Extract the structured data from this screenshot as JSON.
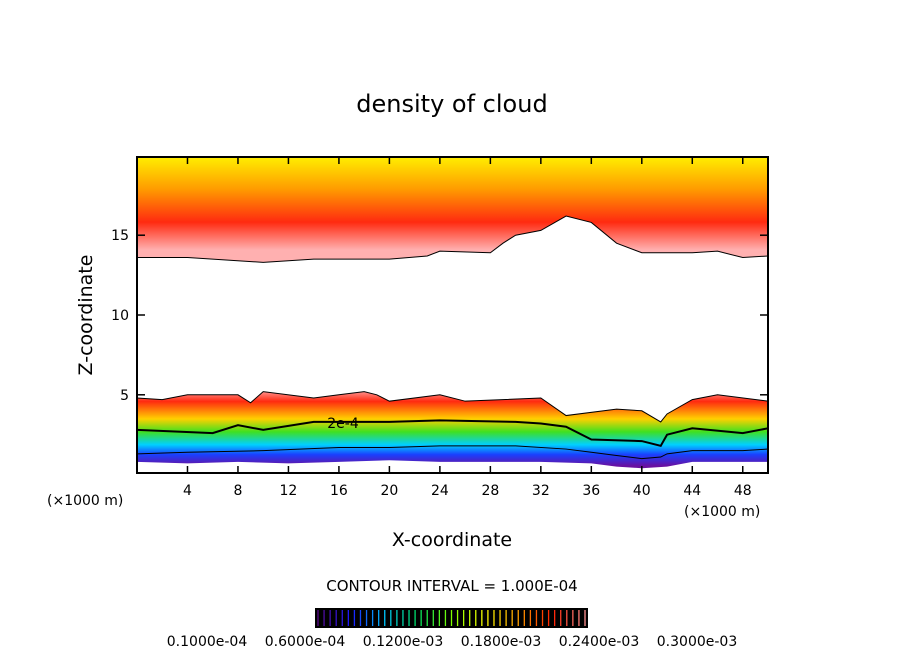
{
  "chart_data": {
    "type": "contour",
    "title": "density of cloud",
    "xlabel": "X-coordinate",
    "ylabel": "Z-coordinate",
    "x_unit_left": "(×1000 m)",
    "x_unit_right": "(×1000 m)",
    "xlim": [
      0,
      50
    ],
    "ylim": [
      0.1,
      19.9
    ],
    "xticks": [
      4,
      8,
      12,
      16,
      20,
      24,
      28,
      32,
      36,
      40,
      44,
      48
    ],
    "yticks": [
      5,
      10,
      15
    ],
    "contour_interval_label": "CONTOUR INTERVAL = 1.000E-04",
    "contour_label": "2e-4",
    "colorbar_labels": [
      "0.1000e-04",
      "0.6000e-04",
      "0.1200e-03",
      "0.1800e-03",
      "0.2400e-03",
      "0.3000e-03"
    ],
    "colorbar_colors": [
      "#5a0a8c",
      "#1a1aff",
      "#00c8ff",
      "#00e060",
      "#80ff00",
      "#ffff00",
      "#ffa000",
      "#ff2000",
      "#ff9090"
    ],
    "upper_cloud_base": {
      "x": [
        0,
        4,
        10,
        14,
        20,
        23,
        24,
        28,
        29,
        30,
        32,
        34,
        36,
        38,
        40,
        44,
        46,
        48,
        50
      ],
      "z": [
        13.6,
        13.6,
        13.3,
        13.5,
        13.5,
        13.7,
        14.0,
        13.9,
        14.5,
        15.0,
        15.3,
        16.2,
        15.8,
        14.5,
        13.9,
        13.9,
        14.0,
        13.6,
        13.7
      ]
    },
    "lower_cloud_top": {
      "x": [
        0,
        2,
        4,
        8,
        9,
        10,
        14,
        16,
        18,
        19,
        20,
        24,
        26,
        32,
        34,
        38,
        40,
        41.5,
        42,
        44,
        46,
        50
      ],
      "z": [
        4.8,
        4.7,
        5.0,
        5.0,
        4.5,
        5.2,
        4.8,
        5.0,
        5.2,
        5.0,
        4.6,
        5.0,
        4.6,
        4.8,
        3.7,
        4.1,
        4.0,
        3.3,
        3.8,
        4.7,
        5.0,
        4.6
      ]
    },
    "contour_2e-4": {
      "x": [
        0,
        6,
        8,
        10,
        14,
        16,
        20,
        24,
        30,
        32,
        34,
        36,
        40,
        41.5,
        42,
        44,
        48,
        50
      ],
      "z": [
        2.8,
        2.6,
        3.1,
        2.8,
        3.3,
        3.3,
        3.3,
        3.4,
        3.3,
        3.2,
        3.0,
        2.2,
        2.1,
        1.8,
        2.5,
        2.9,
        2.6,
        2.9
      ]
    },
    "contour_1e-4": {
      "x": [
        0,
        4,
        10,
        16,
        20,
        24,
        30,
        34,
        36,
        38,
        40,
        41.5,
        42,
        44,
        48,
        50
      ],
      "z": [
        1.3,
        1.4,
        1.5,
        1.7,
        1.7,
        1.8,
        1.8,
        1.6,
        1.4,
        1.2,
        1.0,
        1.1,
        1.3,
        1.5,
        1.5,
        1.6
      ]
    },
    "lower_cloud_base": {
      "x": [
        0,
        4,
        8,
        12,
        16,
        20,
        24,
        28,
        32,
        36,
        38,
        40,
        42,
        44,
        48,
        50
      ],
      "z": [
        0.8,
        0.7,
        0.8,
        0.7,
        0.8,
        0.9,
        0.8,
        0.8,
        0.8,
        0.7,
        0.5,
        0.4,
        0.5,
        0.8,
        0.8,
        0.8
      ]
    }
  }
}
